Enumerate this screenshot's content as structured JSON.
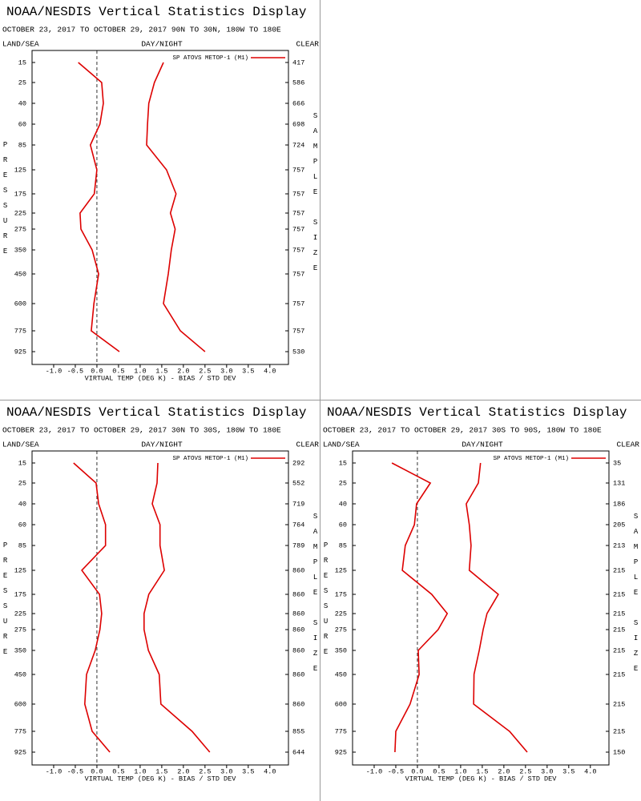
{
  "chart_data": [
    {
      "type": "line",
      "title": "NOAA/NESDIS Vertical Statistics Display",
      "subtitle": "OCTOBER 23, 2017 TO OCTOBER 29, 2017  90N TO 30N, 180W TO 180E",
      "land_sea": "LAND/SEA",
      "day_night": "DAY/NIGHT",
      "clear": "CLEAR",
      "ylabel": "PRESSURE",
      "y2label": "SAMPLE SIZE",
      "xlabel": "VIRTUAL TEMP (DEG K) - BIAS / STD DEV",
      "categories": [
        15,
        25,
        40,
        60,
        85,
        125,
        175,
        225,
        275,
        350,
        450,
        600,
        775,
        925
      ],
      "sample_size": [
        417,
        586,
        666,
        698,
        724,
        757,
        757,
        757,
        757,
        757,
        757,
        757,
        757,
        530
      ],
      "series": [
        {
          "name": "SP ATOVS METOP-1 (M1)",
          "color": "#dd0000",
          "values": [
            -0.43,
            0.11,
            0.15,
            0.07,
            -0.15,
            0.0,
            -0.06,
            -0.39,
            -0.37,
            -0.11,
            0.04,
            -0.07,
            -0.13,
            0.52
          ],
          "std_dev": [
            1.54,
            1.33,
            1.2,
            1.17,
            1.15,
            1.61,
            1.83,
            1.7,
            1.81,
            1.72,
            1.65,
            1.54,
            1.93,
            2.5
          ]
        }
      ],
      "xlim": [
        -1.5,
        4.43
      ],
      "xticks": [
        {
          "value": -1,
          "label": "-1.0"
        },
        -0.5,
        {
          "value": 0,
          "label": "0.0"
        },
        0.5,
        {
          "value": 1,
          "label": "1.0"
        },
        1.5,
        {
          "value": 2,
          "label": "2.0"
        },
        2.5,
        {
          "value": 3,
          "label": "3.0"
        },
        3.5,
        {
          "value": 4,
          "label": "4.0"
        }
      ]
    },
    {
      "type": "line",
      "title": "NOAA/NESDIS Vertical Statistics Display",
      "subtitle": "OCTOBER 23, 2017 TO OCTOBER 29, 2017  30N TO 30S, 180W TO 180E",
      "land_sea": "LAND/SEA",
      "day_night": "DAY/NIGHT",
      "clear": "CLEAR",
      "ylabel": "PRESSURE",
      "y2label": "SAMPLE SIZE",
      "xlabel": "VIRTUAL TEMP (DEG K) - BIAS / STD DEV",
      "categories": [
        15,
        25,
        40,
        60,
        85,
        125,
        175,
        225,
        275,
        350,
        450,
        600,
        775,
        925
      ],
      "sample_size": [
        292,
        552,
        719,
        764,
        789,
        860,
        860,
        860,
        860,
        860,
        860,
        860,
        855,
        644
      ],
      "series": [
        {
          "name": "SP ATOVS METOP-1 (M1)",
          "color": "#dd0000",
          "values": [
            -0.54,
            -0.02,
            0.04,
            0.2,
            0.2,
            -0.35,
            0.06,
            0.11,
            0.07,
            -0.04,
            -0.24,
            -0.28,
            -0.11,
            0.3
          ],
          "std_dev": [
            1.41,
            1.39,
            1.28,
            1.46,
            1.46,
            1.56,
            1.2,
            1.09,
            1.09,
            1.19,
            1.44,
            1.48,
            2.2,
            2.61
          ]
        }
      ],
      "xlim": [
        -1.5,
        4.43
      ],
      "xticks": [
        {
          "value": -1,
          "label": "-1.0"
        },
        -0.5,
        {
          "value": 0,
          "label": "0.0"
        },
        0.5,
        {
          "value": 1,
          "label": "1.0"
        },
        1.5,
        {
          "value": 2,
          "label": "2.0"
        },
        2.5,
        {
          "value": 3,
          "label": "3.0"
        },
        3.5,
        {
          "value": 4,
          "label": "4.0"
        }
      ]
    },
    {
      "type": "line",
      "title": "NOAA/NESDIS Vertical Statistics Display",
      "subtitle": "OCTOBER 23, 2017 TO OCTOBER 29, 2017  30S TO 90S, 180W TO 180E",
      "land_sea": "LAND/SEA",
      "day_night": "DAY/NIGHT",
      "clear": "CLEAR",
      "ylabel": "PRESSURE",
      "y2label": "SAMPLE SIZE",
      "xlabel": "VIRTUAL TEMP (DEG K) - BIAS / STD DEV",
      "categories": [
        15,
        25,
        40,
        60,
        85,
        125,
        175,
        225,
        275,
        350,
        450,
        600,
        775,
        925
      ],
      "sample_size": [
        35,
        131,
        186,
        205,
        213,
        215,
        215,
        215,
        215,
        215,
        215,
        215,
        215,
        150
      ],
      "series": [
        {
          "name": "SP ATOVS METOP-1 (M1)",
          "color": "#dd0000",
          "values": [
            -0.59,
            0.3,
            -0.02,
            -0.07,
            -0.28,
            -0.35,
            0.33,
            0.69,
            0.48,
            0.02,
            0.04,
            -0.17,
            -0.5,
            -0.52
          ],
          "std_dev": [
            1.46,
            1.41,
            1.13,
            1.2,
            1.24,
            1.2,
            1.87,
            1.61,
            1.52,
            1.43,
            1.31,
            1.3,
            2.13,
            2.54
          ]
        }
      ],
      "xlim": [
        -1.5,
        4.43
      ],
      "xticks": [
        {
          "value": -1,
          "label": "-1.0"
        },
        -0.5,
        {
          "value": 0,
          "label": "0.0"
        },
        0.5,
        {
          "value": 1,
          "label": "1.0"
        },
        1.5,
        {
          "value": 2,
          "label": "2.0"
        },
        2.5,
        {
          "value": 3,
          "label": "3.0"
        },
        3.5,
        {
          "value": 4,
          "label": "4.0"
        }
      ]
    }
  ]
}
